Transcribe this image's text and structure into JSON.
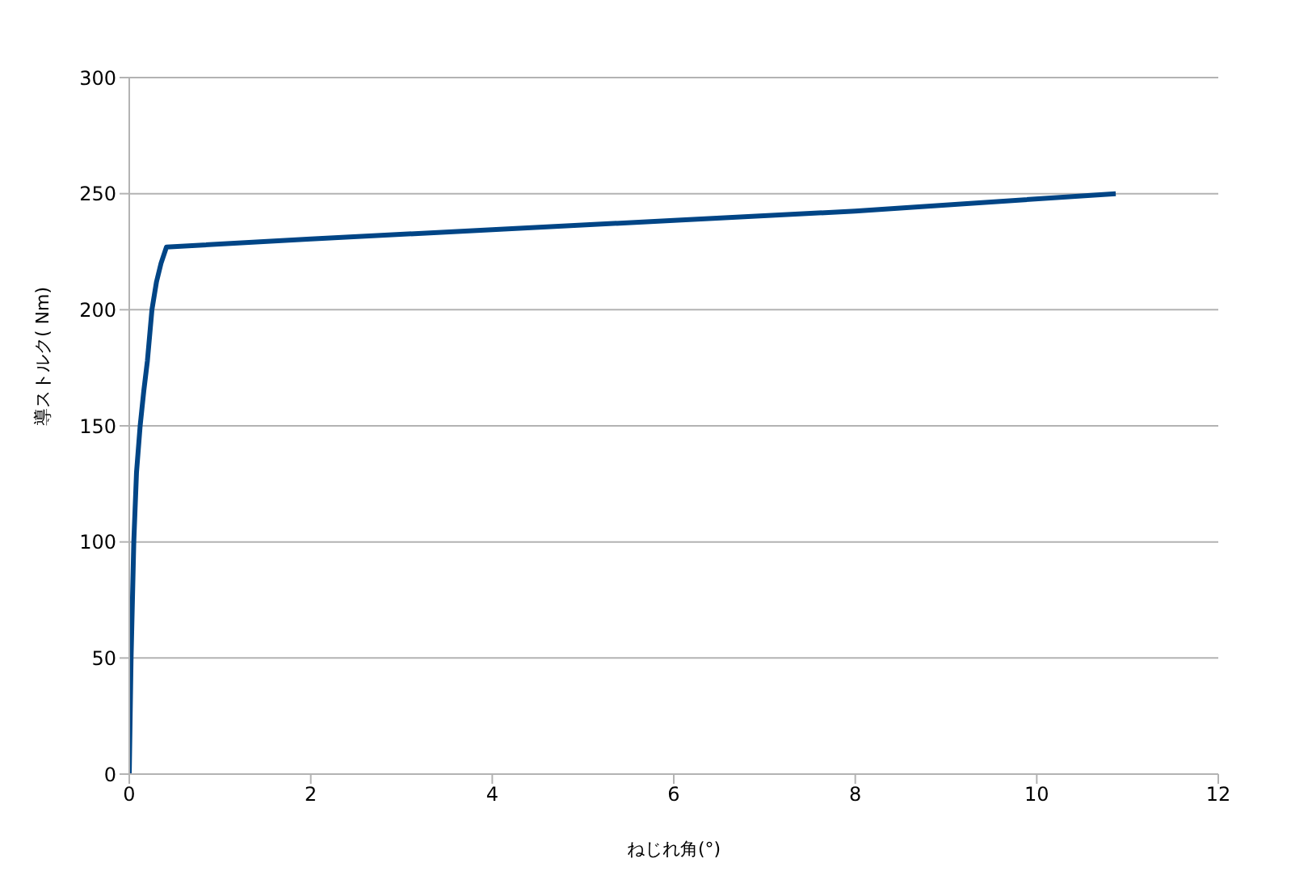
{
  "chart_data": {
    "type": "line",
    "xlabel": "ねじれ角(°)",
    "ylabel": "導ストルク( Nm)",
    "xlim": [
      0,
      12
    ],
    "xticks": [
      0,
      2,
      4,
      6,
      8,
      10,
      12
    ],
    "ylim": [
      0,
      300
    ],
    "yticks": [
      0,
      50,
      100,
      150,
      200,
      250,
      300
    ],
    "grid": "y",
    "marker": "none",
    "line_style": "solid",
    "series": [
      {
        "color": "#004586",
        "x": [
          0,
          0.01,
          0.02,
          0.05,
          0.08,
          0.12,
          0.16,
          0.2,
          0.25,
          0.3,
          0.35,
          0.41,
          2,
          4,
          6,
          8,
          10.87
        ],
        "values": [
          0,
          25,
          50,
          100,
          130,
          150,
          165,
          178,
          200,
          212,
          220,
          227,
          230.5,
          234.5,
          238.5,
          242.5,
          250
        ]
      }
    ]
  }
}
